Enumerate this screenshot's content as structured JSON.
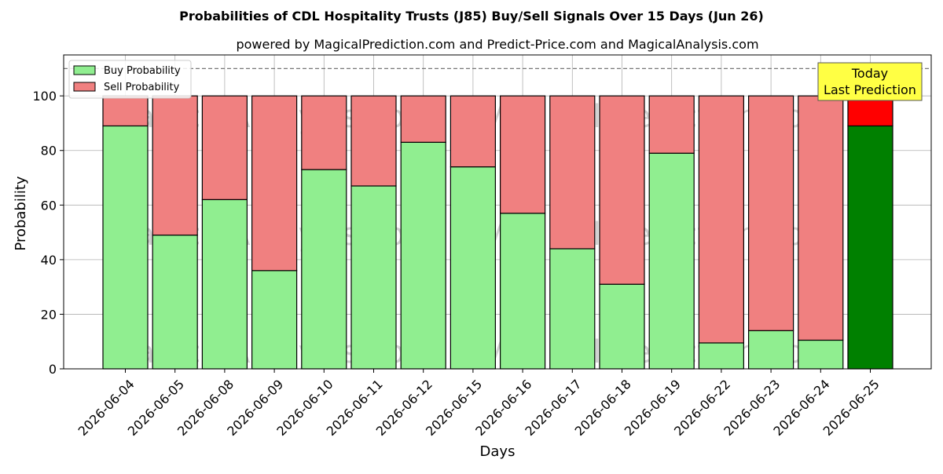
{
  "chart_data": {
    "type": "bar",
    "stacked": true,
    "title": "Probabilities of CDL Hospitality Trusts (J85) Buy/Sell Signals Over 15 Days (Jun 26)",
    "subtitle": "powered by MagicalPrediction.com and Predict-Price.com and MagicalAnalysis.com",
    "xlabel": "Days",
    "ylabel": "Probability",
    "ylim": [
      0,
      115
    ],
    "yticks": [
      0,
      20,
      40,
      60,
      80,
      100
    ],
    "grid": true,
    "legend_position": "top-left",
    "reference_line": 110,
    "categories": [
      "2026-06-04",
      "2026-06-05",
      "2026-06-08",
      "2026-06-09",
      "2026-06-10",
      "2026-06-11",
      "2026-06-12",
      "2026-06-15",
      "2026-06-16",
      "2026-06-17",
      "2026-06-18",
      "2026-06-19",
      "2026-06-22",
      "2026-06-23",
      "2026-06-24",
      "2026-06-25"
    ],
    "series": [
      {
        "name": "Buy Probability",
        "color": "#90EE90",
        "highlight_color": "#008000",
        "values": [
          89,
          49,
          62,
          36,
          73,
          67,
          83,
          74,
          57,
          44,
          31,
          79,
          9.5,
          14,
          10.5,
          89
        ]
      },
      {
        "name": "Sell Probability",
        "color": "#F08080",
        "highlight_color": "#FF0000",
        "values": [
          11,
          51,
          38,
          64,
          27,
          33,
          17,
          26,
          43,
          56,
          69,
          21,
          90.5,
          86,
          89.5,
          11
        ]
      }
    ],
    "annotation": {
      "lines": [
        "Today",
        "Last Prediction"
      ],
      "color": "#FFFF44"
    },
    "watermarks": [
      "MagicalAnalysis.com",
      "MagicalPrediction.com"
    ]
  }
}
